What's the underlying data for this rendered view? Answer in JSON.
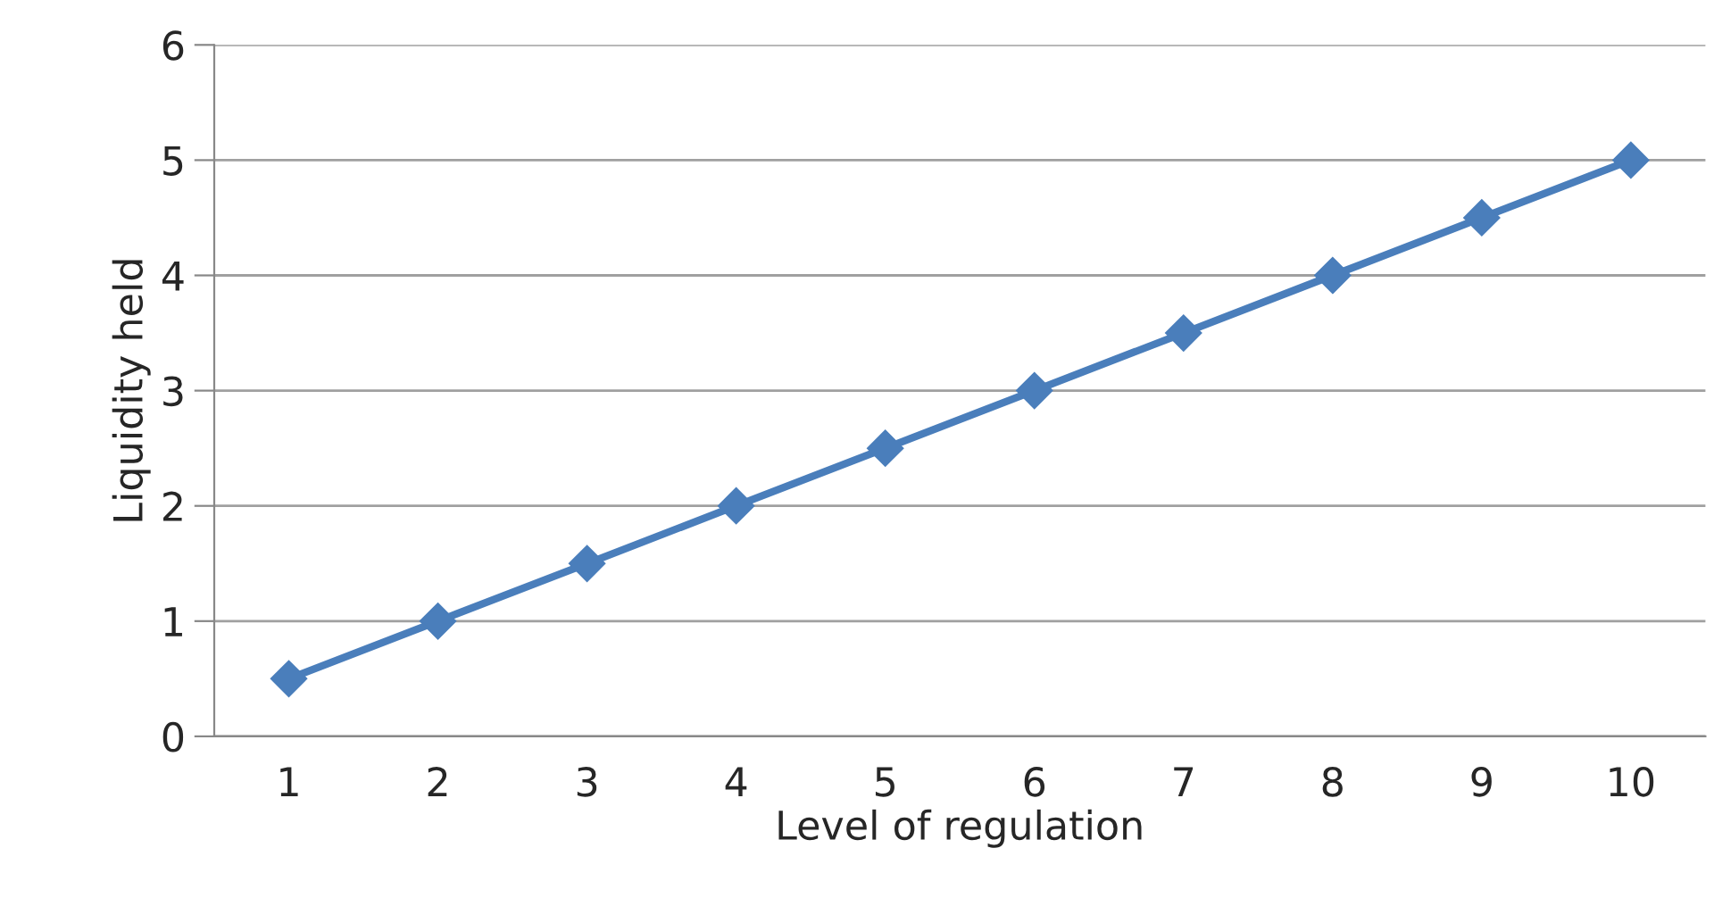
{
  "chart_data": {
    "type": "line",
    "xlabel": "Level of regulation",
    "ylabel": "Liquidity held",
    "categories": [
      "1",
      "2",
      "3",
      "4",
      "5",
      "6",
      "7",
      "8",
      "9",
      "10"
    ],
    "series": [
      {
        "color": "#4a7ebb",
        "values": [
          0.5,
          1,
          1.5,
          2,
          2.5,
          3,
          3.5,
          4,
          4.5,
          5
        ]
      }
    ],
    "ylim": [
      0,
      6
    ],
    "yticks": [
      0,
      1,
      2,
      3,
      4,
      5,
      6
    ],
    "grid": "y",
    "marker": "diamond",
    "line_style": "solid",
    "legend": false
  }
}
